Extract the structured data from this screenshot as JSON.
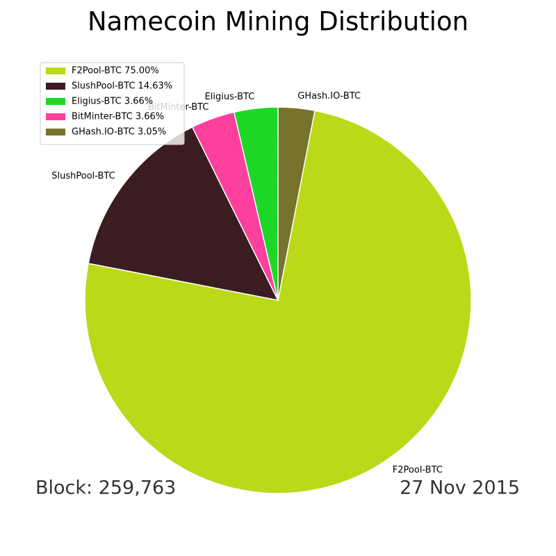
{
  "chart_data": {
    "type": "pie",
    "title": "Namecoin Mining Distribution",
    "categories": [
      "F2Pool-BTC",
      "SlushPool-BTC",
      "BitMinter-BTC",
      "Eligius-BTC",
      "GHash.IO-BTC"
    ],
    "values": [
      75.0,
      14.63,
      3.66,
      3.66,
      3.05
    ],
    "colors": [
      "#bbd918",
      "#3a1c21",
      "#fd3f9d",
      "#1fd726",
      "#77722c"
    ],
    "startangle": 79,
    "direction": "clockwise",
    "legend": [
      {
        "label": "F2Pool-BTC 75.00%",
        "color": "#bbd918"
      },
      {
        "label": "SlushPool-BTC 14.63%",
        "color": "#3a1c21"
      },
      {
        "label": "Eligius-BTC 3.66%",
        "color": "#1fd726"
      },
      {
        "label": "BitMinter-BTC 3.66%",
        "color": "#fd3f9d"
      },
      {
        "label": "GHash.IO-BTC 3.05%",
        "color": "#77722c"
      }
    ],
    "legend_position": "upper left",
    "annotations": [
      "Block: 259,763",
      "27 Nov 2015"
    ]
  }
}
